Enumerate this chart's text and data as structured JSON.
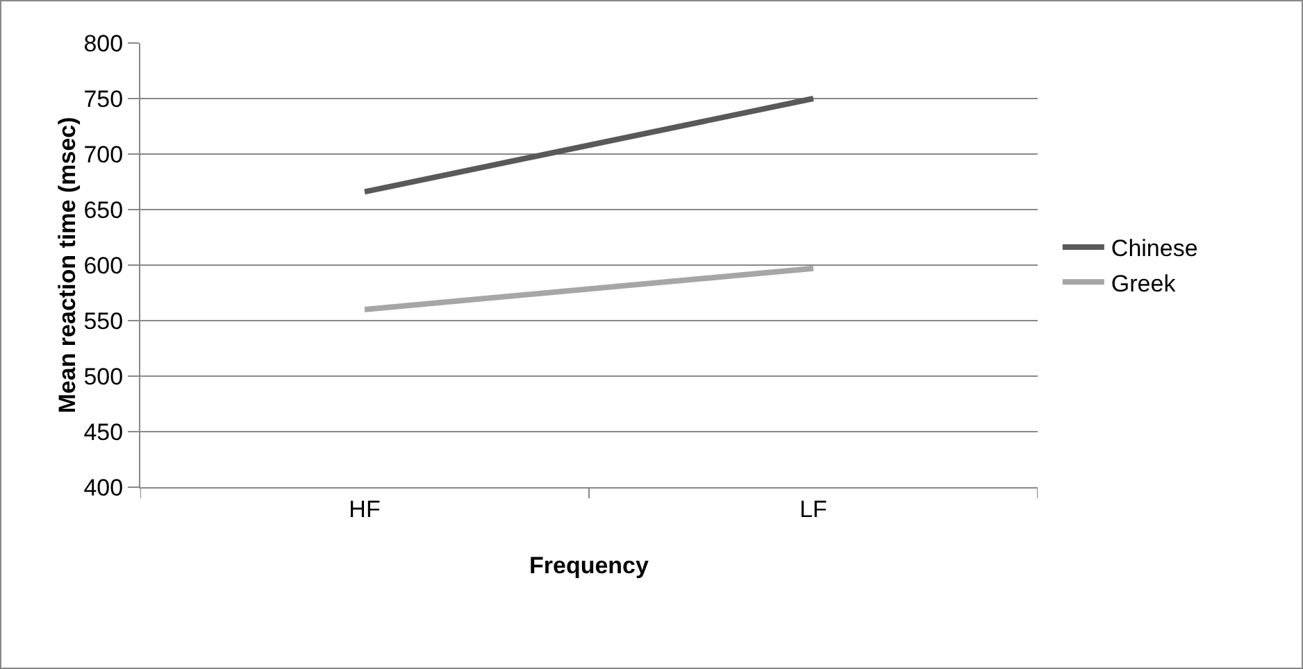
{
  "chart_data": {
    "type": "line",
    "xlabel": "Frequency",
    "ylabel": "Mean reaction time (msec)",
    "categories": [
      "HF",
      "LF"
    ],
    "series": [
      {
        "name": "Chinese",
        "color": "#595959",
        "values": [
          666,
          750
        ]
      },
      {
        "name": "Greek",
        "color": "#a6a6a6",
        "values": [
          560,
          597
        ]
      }
    ],
    "ylim": [
      400,
      800
    ],
    "yticks": [
      400,
      450,
      500,
      550,
      600,
      650,
      700,
      750,
      800
    ],
    "grid": "y",
    "legend": "right",
    "marker": "none",
    "line_style": "solid"
  }
}
